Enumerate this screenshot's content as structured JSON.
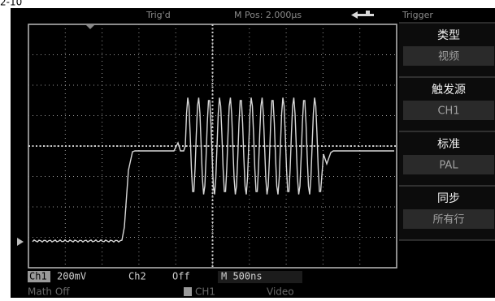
{
  "caption": "2-10",
  "header": {
    "status": "Trig'd",
    "position": "M Pos: 2.000µs",
    "menu_title": "Trigger"
  },
  "menu": [
    {
      "label": "类型",
      "value": "视频"
    },
    {
      "label": "触发源",
      "value": "CH1"
    },
    {
      "label": "标准",
      "value": "PAL"
    },
    {
      "label": "同步",
      "value": "所有行"
    }
  ],
  "status_bar": {
    "ch1": "Ch1",
    "ch1_scale": "200mV",
    "ch2": "Ch2",
    "ch2_state": "Off",
    "timebase": "M 500ns",
    "math": "Math Off",
    "trigger_source": "CH1",
    "trigger_type": "Video",
    "channel_marker": "1"
  }
}
